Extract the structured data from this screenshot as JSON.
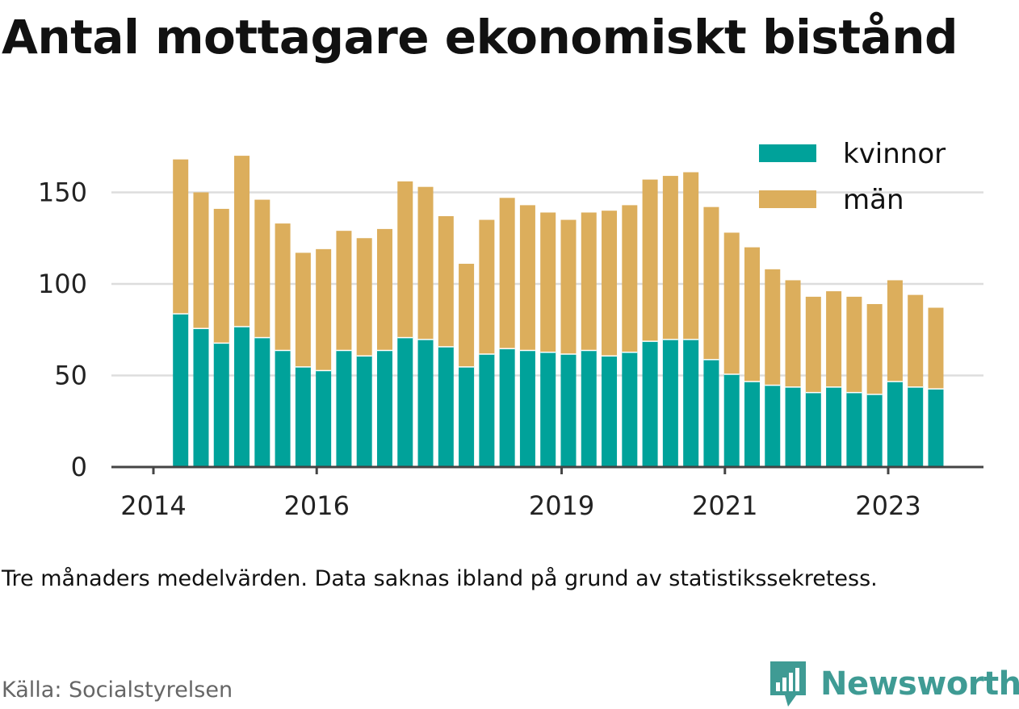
{
  "title": "Antal mottagare ekonomiskt bistånd",
  "note": "Tre månaders medelvärden. Data saknas ibland på grund av statistikssekretess.",
  "source": "Källa: Socialstyrelsen",
  "brand": "Newsworthy",
  "colors": {
    "kvinnor": "#00a29a",
    "man": "#dcae5c",
    "grid": "#dddddd",
    "axis": "#444444",
    "brand": "#3f9b94"
  },
  "chart_data": {
    "type": "bar",
    "stacked": true,
    "x_start": "2014-05",
    "x_step_months": 3,
    "xlim": [
      "2014-01",
      "2024-06"
    ],
    "ylim": [
      0,
      180
    ],
    "x_ticks": [
      {
        "label": "2014",
        "month_index": 0
      },
      {
        "label": "2016",
        "month_index": 24
      },
      {
        "label": "2019",
        "month_index": 60
      },
      {
        "label": "2021",
        "month_index": 84
      },
      {
        "label": "2023",
        "month_index": 108
      }
    ],
    "y_ticks": [
      {
        "label": "0",
        "value": 0
      },
      {
        "label": "50",
        "value": 50
      },
      {
        "label": "100",
        "value": 100
      },
      {
        "label": "150",
        "value": 150
      }
    ],
    "grid": true,
    "legend_position": "top-right",
    "series": [
      {
        "name": "kvinnor",
        "color": "#00a29a",
        "values": [
          84,
          76,
          68,
          77,
          71,
          64,
          55,
          53,
          64,
          61,
          64,
          71,
          70,
          66,
          55,
          62,
          65,
          64,
          63,
          62,
          64,
          61,
          63,
          69,
          70,
          70,
          59,
          51,
          47,
          45,
          44,
          41,
          44,
          41,
          40,
          47,
          44,
          43
        ]
      },
      {
        "name": "män",
        "color": "#dcae5c",
        "values": [
          84,
          74,
          73,
          93,
          75,
          69,
          62,
          66,
          65,
          64,
          66,
          85,
          83,
          71,
          56,
          73,
          82,
          79,
          76,
          73,
          75,
          79,
          80,
          88,
          89,
          91,
          83,
          77,
          73,
          63,
          58,
          52,
          52,
          52,
          49,
          55,
          50,
          44
        ]
      }
    ]
  }
}
